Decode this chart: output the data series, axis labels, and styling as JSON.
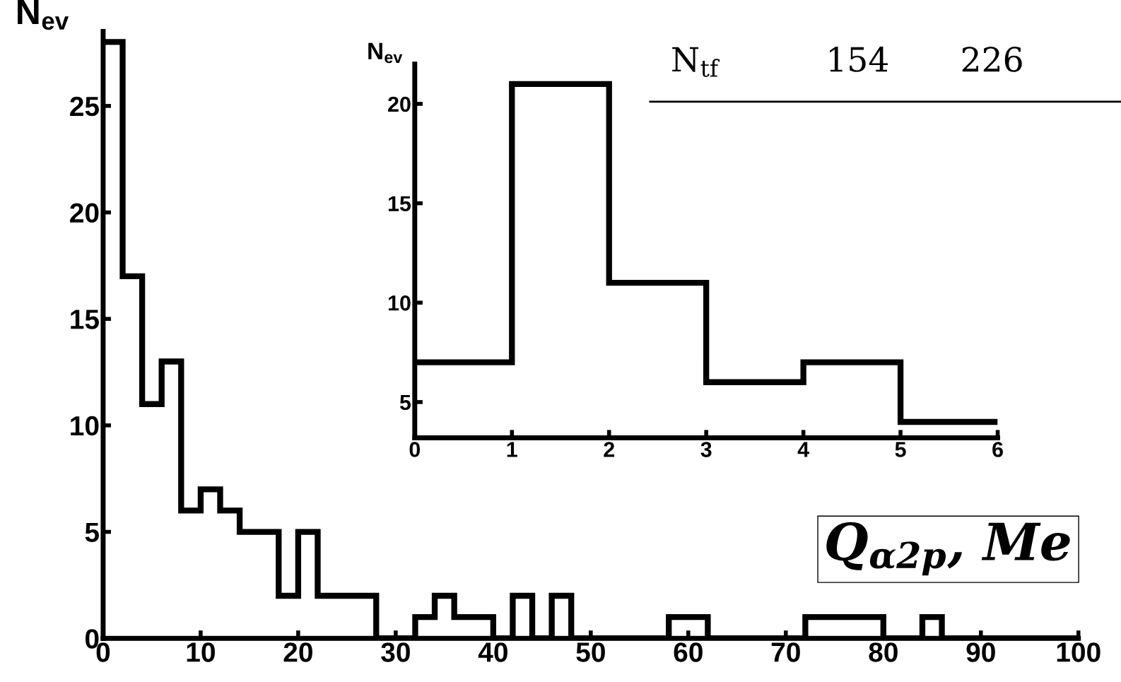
{
  "chart_data": [
    {
      "type": "histogram",
      "ylabel": "N$_{ev}$",
      "color": "#000000",
      "bins": [
        0,
        2,
        4,
        6,
        8,
        10,
        12,
        14,
        16,
        18,
        20,
        22,
        24,
        26,
        28,
        30,
        32,
        34,
        36,
        38,
        40,
        42,
        44,
        46,
        48,
        50,
        52,
        54,
        56,
        58,
        60,
        62,
        64,
        66,
        68,
        70,
        72,
        74,
        76,
        78,
        80,
        82,
        84,
        86,
        88,
        90,
        92,
        94,
        96,
        98,
        100
      ],
      "values": [
        28,
        17,
        11,
        13,
        6,
        7,
        6,
        5,
        5,
        2,
        5,
        2,
        2,
        2,
        0,
        0,
        1,
        2,
        1,
        1,
        0,
        2,
        0,
        2,
        0,
        0,
        0,
        0,
        0,
        1,
        1,
        0,
        0,
        0,
        0,
        0,
        1,
        1,
        1,
        1,
        0,
        0,
        1,
        0,
        0,
        0,
        0,
        0,
        0,
        0
      ],
      "xlim": [
        0,
        100
      ],
      "ylim": [
        0,
        28.5
      ],
      "xticks": [
        0,
        10,
        20,
        30,
        40,
        50,
        60,
        70,
        80,
        90,
        100
      ],
      "yticks": [
        0,
        5,
        10,
        15,
        20,
        25
      ],
      "annotations": [
        "N$_{tf}$",
        "154",
        "226",
        "Q$_{α2p}$, Me"
      ]
    },
    {
      "type": "histogram",
      "ylabel": "N$_{ev}$",
      "color": "#000000",
      "bins": [
        0,
        1,
        2,
        3,
        4,
        5,
        6
      ],
      "values": [
        7,
        21,
        11,
        6,
        7,
        4
      ],
      "xlim": [
        0,
        6
      ],
      "ylim": [
        3.2,
        22
      ],
      "xticks": [
        0,
        1,
        2,
        3,
        4,
        5,
        6
      ],
      "yticks": [
        5,
        10,
        15,
        20
      ]
    }
  ]
}
